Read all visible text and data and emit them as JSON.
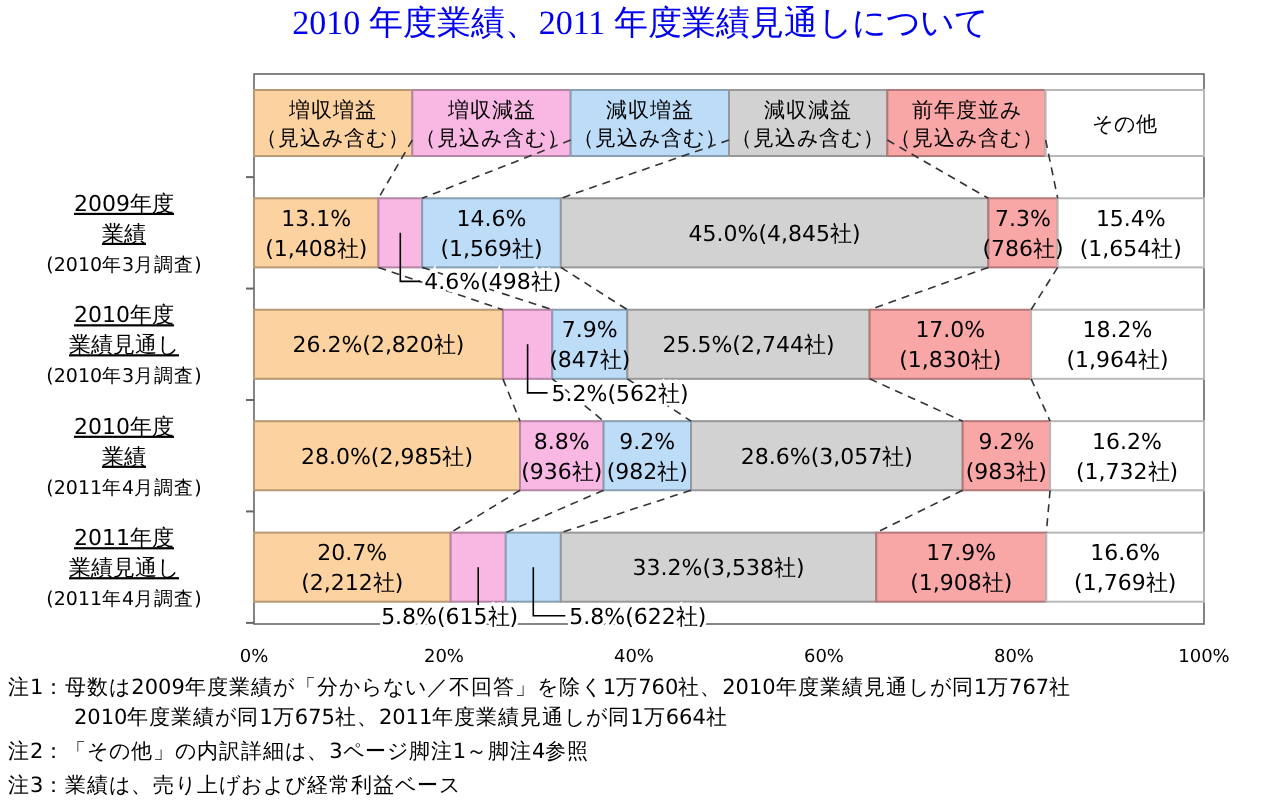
{
  "chart_data": {
    "type": "bar",
    "orientation": "horizontal",
    "stacked": true,
    "legend": "top",
    "title": "2010 年度業績、2011 年度業績見通しについて",
    "categories": [
      "2009年度業績(2010年3月調査)",
      "2010年度業績見通し(2010年3月調査)",
      "2010年度業績(2011年4月調査)",
      "2011年度業績見通し(2011年4月調査)"
    ],
    "xlim": [
      0,
      100
    ],
    "xticks": [
      {
        "value": 0,
        "label": "0%"
      },
      {
        "value": 20,
        "label": "20%"
      },
      {
        "value": 40,
        "label": "40%"
      },
      {
        "value": 60,
        "label": "60%"
      },
      {
        "value": 80,
        "label": "80%"
      },
      {
        "value": 100,
        "label": "100%"
      }
    ],
    "series": [
      {
        "name": "増収増益（見込み含む）",
        "color": "#fcd3a0",
        "values": [
          13.1,
          26.2,
          28.0,
          20.7
        ],
        "value_labels": [
          "13.1%\n(1,408社)",
          "26.2%(2,820社)",
          "28.0%(2,985社)",
          "20.7%\n(2,212社)"
        ]
      },
      {
        "name": "増収減益（見込み含む）",
        "color": "#f9b8e4",
        "values": [
          4.6,
          5.2,
          8.8,
          5.8
        ],
        "value_labels": [
          "4.6%(498社)",
          "5.2%(562社)",
          "8.8%\n(936社)",
          "5.8%(615社)"
        ]
      },
      {
        "name": "減収増益（見込み含む）",
        "color": "#bcdcf8",
        "values": [
          14.6,
          7.9,
          9.2,
          5.8
        ],
        "value_labels": [
          "14.6%\n(1,569社)",
          "7.9%\n(847社)",
          "9.2%\n(982社)",
          "5.8%(622社)"
        ]
      },
      {
        "name": "減収減益（見込み含む）",
        "color": "#d2d2d2",
        "values": [
          45.0,
          25.5,
          28.6,
          33.2
        ],
        "value_labels": [
          "45.0%(4,845社)",
          "25.5%(2,744社)",
          "28.6%(3,057社)",
          "33.2%(3,538社)"
        ]
      },
      {
        "name": "前年度並み（見込み含む）",
        "color": "#f8a6a6",
        "values": [
          7.3,
          17.0,
          9.2,
          17.9
        ],
        "value_labels": [
          "7.3%\n(786社)",
          "17.0%\n(1,830社)",
          "9.2%\n(983社)",
          "17.9%\n(1,908社)"
        ]
      },
      {
        "name": "その他",
        "color": "#ffffff",
        "values": [
          15.4,
          18.2,
          16.2,
          16.6
        ],
        "value_labels": [
          "15.4%\n(1,654社)",
          "18.2%\n(1,964社)",
          "16.2%\n(1,732社)",
          "16.6%\n(1,769社)"
        ]
      }
    ],
    "annotations": [
      "注1：母数は2009年度業績が「分からない／不回答」を除く1万760社、2010年度業績見通しが同1万767社\n2010年度業績が同1万675社、2011年度業績見通しが同1万664社",
      "注2：「その他」の内訳詳細は、3ページ脚注1～脚注4参照",
      "注3：業績は、売り上げおよび経常利益ベース"
    ]
  }
}
